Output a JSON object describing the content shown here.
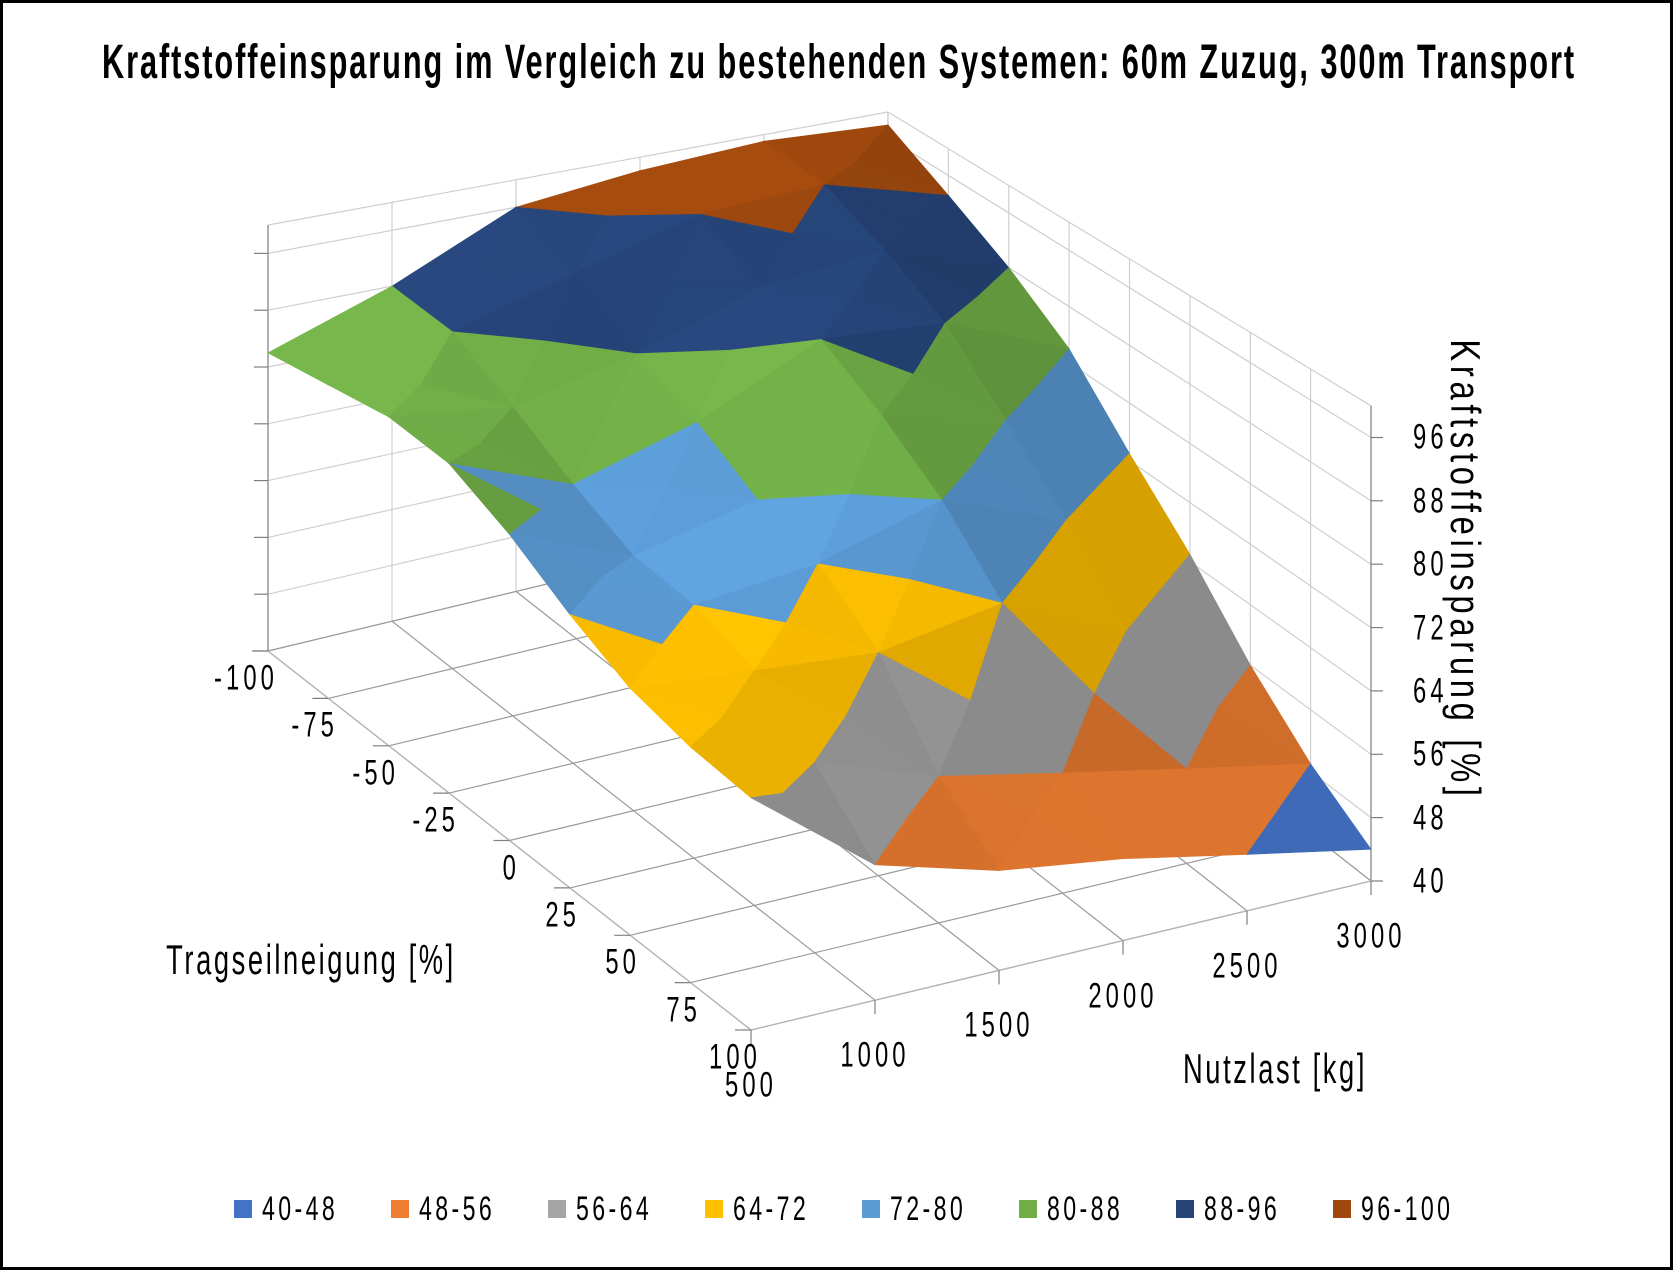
{
  "title": "Kraftstoffeinsparung im Vergleich zu bestehenden Systemen: 60m Zuzug, 300m Transport",
  "axes": {
    "x": {
      "title": "Nutzlast [kg]",
      "ticks": [
        "500",
        "1000",
        "1500",
        "2000",
        "2500",
        "3000"
      ]
    },
    "y": {
      "title": "Tragseilneigung [%]",
      "ticks": [
        "-100",
        "-75",
        "-50",
        "-25",
        "0",
        "25",
        "50",
        "75",
        "100"
      ]
    },
    "z": {
      "title": "Kraftstoffeinsparung [%]",
      "ticks": [
        "40",
        "48",
        "56",
        "64",
        "72",
        "80",
        "88",
        "96"
      ]
    }
  },
  "legend": {
    "items": [
      {
        "label": "40-48",
        "color": "#4472C4"
      },
      {
        "label": "48-56",
        "color": "#ED7D31"
      },
      {
        "label": "56-64",
        "color": "#A5A5A5"
      },
      {
        "label": "64-72",
        "color": "#FFC000"
      },
      {
        "label": "72-80",
        "color": "#5B9BD5"
      },
      {
        "label": "80-88",
        "color": "#70AD47"
      },
      {
        "label": "88-96",
        "color": "#264478"
      },
      {
        "label": "96-100",
        "color": "#9E480E"
      }
    ]
  },
  "chart_data": {
    "type": "surface",
    "title": "Kraftstoffeinsparung im Vergleich zu bestehenden Systemen: 60m Zuzug, 300m Transport",
    "xlabel": "Nutzlast [kg]",
    "ylabel": "Tragseilneigung [%]",
    "zlabel": "Kraftstoffeinsparung [%]",
    "x_values": [
      500,
      1000,
      1500,
      2000,
      2500,
      3000
    ],
    "y_values": [
      -100,
      -75,
      -50,
      -25,
      0,
      25,
      50,
      75,
      100
    ],
    "z_range": [
      40,
      100
    ],
    "z_tick_step": 8,
    "grid_on": true,
    "legend_position": "bottom",
    "bands": [
      {
        "range": [
          40,
          48
        ],
        "color": "#4472C4"
      },
      {
        "range": [
          48,
          56
        ],
        "color": "#ED7D31"
      },
      {
        "range": [
          56,
          64
        ],
        "color": "#A5A5A5"
      },
      {
        "range": [
          64,
          72
        ],
        "color": "#FFC000"
      },
      {
        "range": [
          72,
          80
        ],
        "color": "#5B9BD5"
      },
      {
        "range": [
          80,
          88
        ],
        "color": "#70AD47"
      },
      {
        "range": [
          88,
          96
        ],
        "color": "#264478"
      },
      {
        "range": [
          96,
          100
        ],
        "color": "#9E480E"
      }
    ],
    "series": [
      {
        "name": -100,
        "values": [
          82,
          88,
          96,
          98,
          99,
          98
        ]
      },
      {
        "name": -75,
        "values": [
          83,
          87,
          92,
          97,
          98,
          93
        ]
      },
      {
        "name": -50,
        "values": [
          84,
          82,
          86,
          92,
          94,
          88
        ]
      },
      {
        "name": -25,
        "values": [
          83,
          77,
          82,
          90,
          89,
          82
        ]
      },
      {
        "name": 0,
        "values": [
          79,
          73,
          77,
          85,
          81,
          73
        ]
      },
      {
        "name": 25,
        "values": [
          74,
          72,
          74,
          79,
          73,
          65
        ]
      },
      {
        "name": 50,
        "values": [
          70,
          69,
          68,
          71,
          64,
          56
        ]
      },
      {
        "name": 75,
        "values": [
          68,
          63,
          58,
          55,
          52,
          49
        ]
      },
      {
        "name": 100,
        "values": [
          67,
          56,
          52,
          50,
          47,
          44
        ]
      }
    ]
  }
}
